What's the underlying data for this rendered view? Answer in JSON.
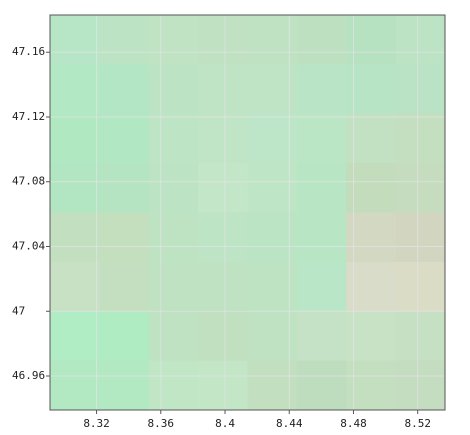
{
  "chart_data": {
    "type": "raster",
    "xlim": [
      8.291,
      8.537
    ],
    "xticks": [
      8.32,
      8.36,
      8.4,
      8.44,
      8.48,
      8.52
    ],
    "ylim": [
      46.939,
      47.183
    ],
    "yticks": [
      46.96,
      47,
      47.04,
      47.08,
      47.12,
      47.16
    ],
    "grid": true,
    "grid_color": "#e4e4e4",
    "axis_color": "#555555",
    "cell_colors": [
      [
        "#b6e6c6",
        "#bce4c4",
        "#bfe3c3",
        "#c0e2c2",
        "#bfe2c2",
        "#bde0c0",
        "#b6e2c2",
        "#bbe3c4"
      ],
      [
        "#b2e8c4",
        "#b3e6c4",
        "#bce4c4",
        "#bfe3c5",
        "#bee4c5",
        "#bae4c6",
        "#b8e4c6",
        "#bae2c4"
      ],
      [
        "#b0e8c2",
        "#b1e7c2",
        "#bee4c6",
        "#c0e4c6",
        "#bde6c8",
        "#bae6c6",
        "#c2e0c2",
        "#c3dfc0"
      ],
      [
        "#b2e6c2",
        "#b4e4c2",
        "#bce4c4",
        "#c4e6c8",
        "#bee6c6",
        "#b8e6c4",
        "#c3dcbc",
        "#c6dcbe"
      ],
      [
        "#c2e0c0",
        "#c3dfbe",
        "#bee3c2",
        "#bde4c4",
        "#bbe4c4",
        "#b8e6c4",
        "#d2d8c2",
        "#d2d6c0"
      ],
      [
        "#c8e0c4",
        "#c4dfbf",
        "#bee2c2",
        "#bee2c2",
        "#bde3c3",
        "#b8e6c6",
        "#d8dcc8",
        "#dadcc6"
      ],
      [
        "#b0ecc4",
        "#b0ecc2",
        "#bee2c2",
        "#c0e0c0",
        "#bfe2c2",
        "#c6e2c6",
        "#c8e2c6",
        "#c6e0c4"
      ],
      [
        "#b2e8c2",
        "#b2e8c2",
        "#c0e6c6",
        "#c2e6c6",
        "#c2dfc0",
        "#bedcbe",
        "#c4dec0",
        "#c4dcc0"
      ]
    ]
  }
}
